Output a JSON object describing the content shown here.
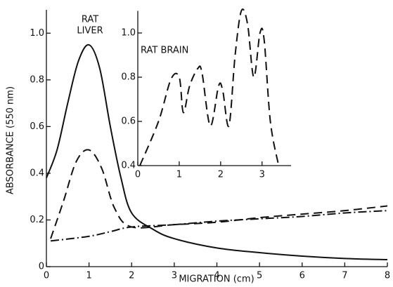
{
  "chart_data": [
    {
      "type": "line",
      "x_label": "MIGRATION (cm)",
      "y_label": "ABSORBANCE (550 nm)",
      "annotations": [
        "RAT",
        "LIVER"
      ],
      "xlim": [
        0,
        8
      ],
      "xticks": [
        0,
        1,
        2,
        3,
        4,
        5,
        6,
        7,
        8
      ],
      "ylim": [
        0,
        1.1
      ],
      "yticks": [
        0,
        0.2,
        0.4,
        0.6,
        0.8,
        {
          "value": 1,
          "label": "1.0"
        }
      ],
      "series": [
        {
          "color": "#111111",
          "style": "solid",
          "x": [
            0,
            0.25,
            0.5,
            0.75,
            1,
            1.25,
            1.5,
            1.75,
            2,
            2.5,
            3,
            4,
            5,
            6,
            7,
            8
          ],
          "values": [
            0.38,
            0.5,
            0.7,
            0.88,
            0.95,
            0.85,
            0.6,
            0.38,
            0.23,
            0.16,
            0.12,
            0.08,
            0.06,
            0.045,
            0.035,
            0.03
          ]
        },
        {
          "color": "#111111",
          "style": "dashed",
          "x": [
            0.1,
            0.4,
            0.7,
            1,
            1.3,
            1.6,
            2,
            3,
            4,
            5,
            6,
            7,
            8
          ],
          "values": [
            0.12,
            0.28,
            0.45,
            0.5,
            0.42,
            0.25,
            0.17,
            0.18,
            0.19,
            0.21,
            0.225,
            0.24,
            0.26
          ]
        },
        {
          "color": "#111111",
          "style": "dashdot",
          "x": [
            0.1,
            1,
            1.5,
            2,
            3,
            4,
            5,
            6,
            7,
            8
          ],
          "values": [
            0.11,
            0.13,
            0.15,
            0.17,
            0.18,
            0.195,
            0.205,
            0.215,
            0.23,
            0.24
          ]
        }
      ]
    },
    {
      "type": "line",
      "annotations": [
        "RAT BRAIN"
      ],
      "xlim": [
        0,
        3.7
      ],
      "xticks": [
        0,
        1,
        2,
        3
      ],
      "ylim": [
        0.4,
        1.1
      ],
      "yticks": [
        0.4,
        0.6,
        0.8,
        {
          "value": 1,
          "label": "1.0"
        }
      ],
      "series": [
        {
          "color": "#111111",
          "style": "dashed",
          "x": [
            0.05,
            0.5,
            0.8,
            1.0,
            1.1,
            1.25,
            1.45,
            1.55,
            1.75,
            1.95,
            2.05,
            2.2,
            2.35,
            2.5,
            2.65,
            2.8,
            2.95,
            3.05,
            3.2,
            3.4
          ],
          "values": [
            0.4,
            0.6,
            0.79,
            0.8,
            0.64,
            0.76,
            0.84,
            0.82,
            0.58,
            0.76,
            0.74,
            0.58,
            0.9,
            1.1,
            1.04,
            0.8,
            1.0,
            0.97,
            0.6,
            0.4
          ]
        }
      ]
    }
  ]
}
